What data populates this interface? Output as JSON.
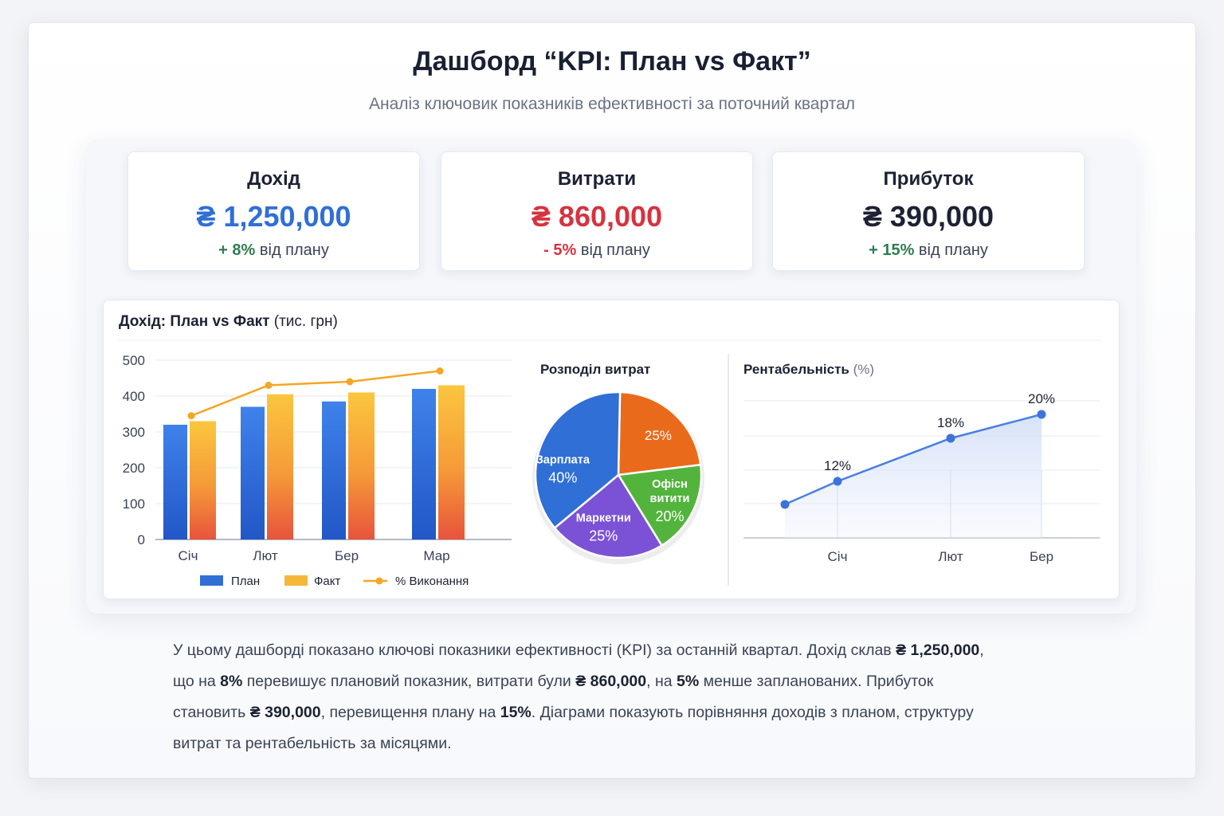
{
  "header": {
    "title": "Дашборд “KPI: План vs Факт”",
    "subtitle": "Аналіз ключовик показників ефективності за поточний квартал"
  },
  "kpis": [
    {
      "label": "Дохід",
      "value": "₴ 1,250,000",
      "delta": "+ 8%",
      "delta_suffix": "від плану",
      "value_color": "#2f6fd6",
      "delta_color": "#2e7d4f"
    },
    {
      "label": "Витрати",
      "value": "₴ 860,000",
      "delta": "- 5%",
      "delta_suffix": "від плану",
      "value_color": "#d6333f",
      "delta_color": "#d6333f"
    },
    {
      "label": "Прибуток",
      "value": "₴ 390,000",
      "delta": "+ 15%",
      "delta_suffix": "від плану",
      "value_color": "#1c2233",
      "delta_color": "#2e7d4f"
    }
  ],
  "bar_chart": {
    "title_bold": "Дохід: План vs Факт",
    "title_rest": "(тис. грн)"
  },
  "pie_chart": {
    "title": "Розподіл витрат"
  },
  "line_chart": {
    "title_bold": "Рентабельність",
    "title_rest": "(%)"
  },
  "chart_data": [
    {
      "type": "bar",
      "title": "Дохід: План vs Факт (тис. грн)",
      "categories": [
        "Січ",
        "Лют",
        "Бер",
        "Мар"
      ],
      "series": [
        {
          "name": "План",
          "values": [
            320,
            370,
            385,
            420
          ],
          "color": "#2f6fd6"
        },
        {
          "name": "Факт",
          "values": [
            330,
            405,
            410,
            430
          ],
          "color": "#f5b73a"
        },
        {
          "name": "% Виконання",
          "type": "line",
          "values": [
            345,
            430,
            440,
            470
          ],
          "color": "#f5a623"
        }
      ],
      "yticks": [
        0,
        100,
        200,
        300,
        400,
        500
      ],
      "ylim": [
        0,
        500
      ],
      "grid": true,
      "legend": "bottom"
    },
    {
      "type": "pie",
      "title": "Розподіл витрат",
      "slices": [
        {
          "label": "",
          "value": 25,
          "text": "25%",
          "color": "#ea6a1c"
        },
        {
          "label": "Офісн витити",
          "value": 20,
          "text": "20%",
          "color": "#53b43d"
        },
        {
          "label": "Маркетни",
          "value": 25,
          "text": "25%",
          "color": "#7b52d6"
        },
        {
          "label": "Зарплата",
          "value": 40,
          "text": "40%",
          "color": "#2f6fd6"
        }
      ]
    },
    {
      "type": "area",
      "title": "Рентабельність (%)",
      "categories": [
        "Січ",
        "Лют",
        "Бер"
      ],
      "series": [
        {
          "name": "",
          "x": [
            0.6,
            1,
            2,
            3
          ],
          "values": [
            9,
            12,
            18,
            20
          ],
          "labels": [
            "",
            "12%",
            "18%",
            "20%"
          ]
        }
      ],
      "ylim": [
        0,
        28
      ],
      "grid": true
    }
  ],
  "summary": [
    {
      "t": "У цьому дашборді показано ключові показники ефективності (KPI) за останній квартал. Дохід склав ",
      "b": false
    },
    {
      "t": "₴ 1,250,000",
      "b": true
    },
    {
      "t": ", що на ",
      "b": false
    },
    {
      "t": "8%",
      "b": true
    },
    {
      "t": " перевишує плановий показник, витрати були ",
      "b": false
    },
    {
      "t": "₴ 860,000",
      "b": true
    },
    {
      "t": ", на ",
      "b": false
    },
    {
      "t": "5%",
      "b": true
    },
    {
      "t": " менше запланованих. Прибуток становить ",
      "b": false
    },
    {
      "t": "₴ 390,000",
      "b": true
    },
    {
      "t": ", перевищення плану на ",
      "b": false
    },
    {
      "t": "15%",
      "b": true
    },
    {
      "t": ". Діаграми показують порівняння доходів з планом, структуру витрат та рентабельність за місяцями.",
      "b": false
    }
  ]
}
